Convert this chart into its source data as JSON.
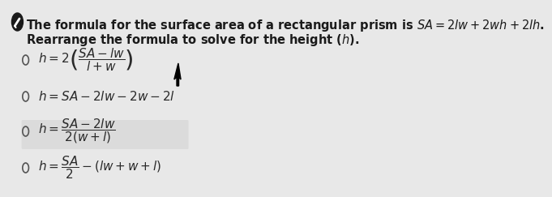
{
  "bg_color": "#e8e8e8",
  "title_line1": "The formula for the surface area of a rectangular prism is $SA = 2lw + 2wh + 2lh$.",
  "title_line2": "Rearrange the formula to solve for the height ($h$).",
  "options": [
    "$h = 2\\left(\\dfrac{SA - lw}{l + w}\\right)$",
    "$h = SA - 2lw - 2w - 2l$",
    "$h = \\dfrac{SA - 2lw}{2(w + l)}$",
    "$h = \\dfrac{SA}{2} - (lw + w + l)$"
  ],
  "icon_color": "#1a1a1a",
  "text_color": "#1a1a1a",
  "option_color": "#2a2a2a",
  "radio_color": "#555555",
  "font_size_title": 10.5,
  "font_size_option": 11,
  "highlight_option": 2
}
